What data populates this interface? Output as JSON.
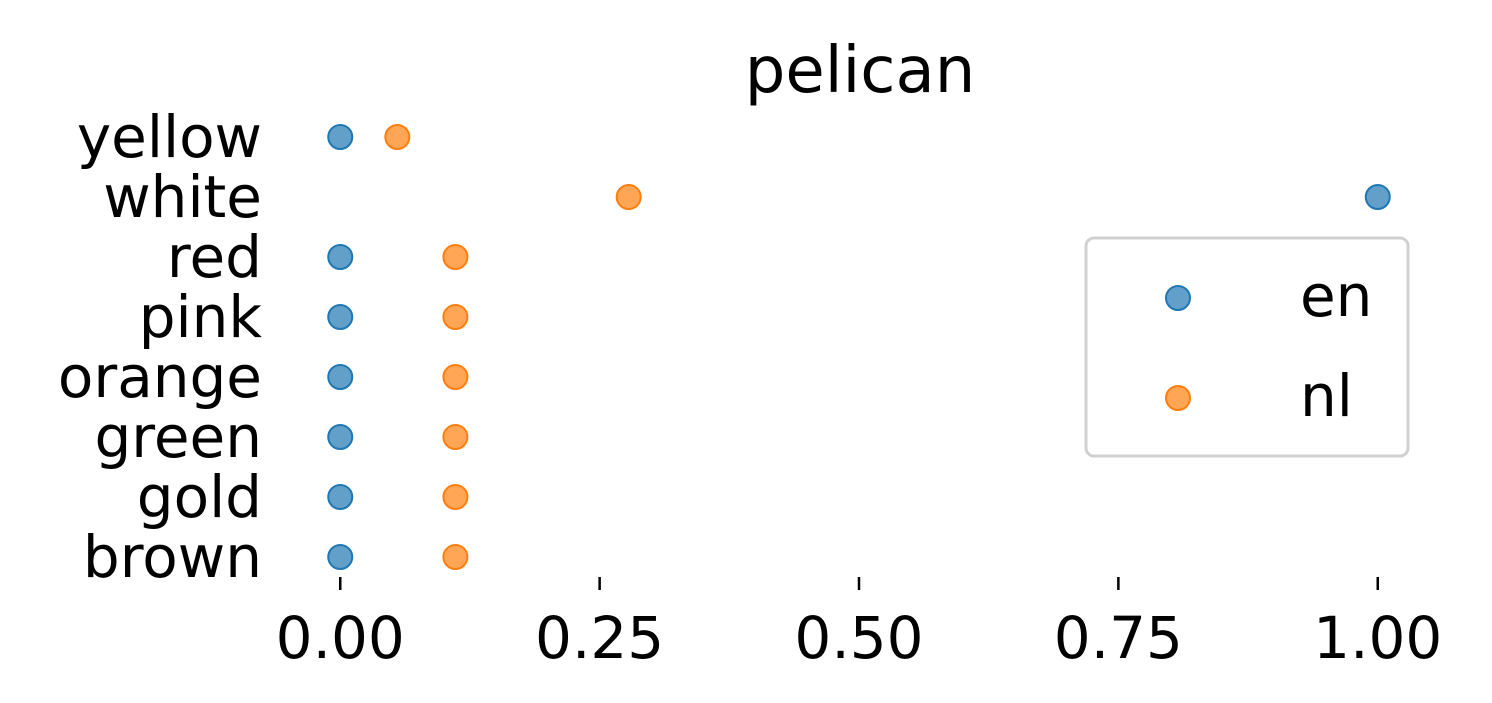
{
  "chart_data": {
    "type": "scatter",
    "title": "pelican",
    "xlabel": "",
    "ylabel": "",
    "categories": [
      "yellow",
      "white",
      "red",
      "pink",
      "orange",
      "green",
      "gold",
      "brown"
    ],
    "series": [
      {
        "name": "en",
        "color": "#1f77b4",
        "values": [
          0.0,
          1.0,
          0.0,
          0.0,
          0.0,
          0.0,
          0.0,
          0.0
        ]
      },
      {
        "name": "nl",
        "color": "#ff7f0e",
        "values": [
          0.055,
          0.278,
          0.111,
          0.111,
          0.111,
          0.111,
          0.111,
          0.111
        ]
      }
    ],
    "xlim": [
      -0.06,
      1.06
    ],
    "xticks": [
      0.0,
      0.25,
      0.5,
      0.75,
      1.0
    ],
    "xtick_labels": [
      "0.00",
      "0.25",
      "0.50",
      "0.75",
      "1.00"
    ],
    "grid": false,
    "legend_position": "right"
  }
}
